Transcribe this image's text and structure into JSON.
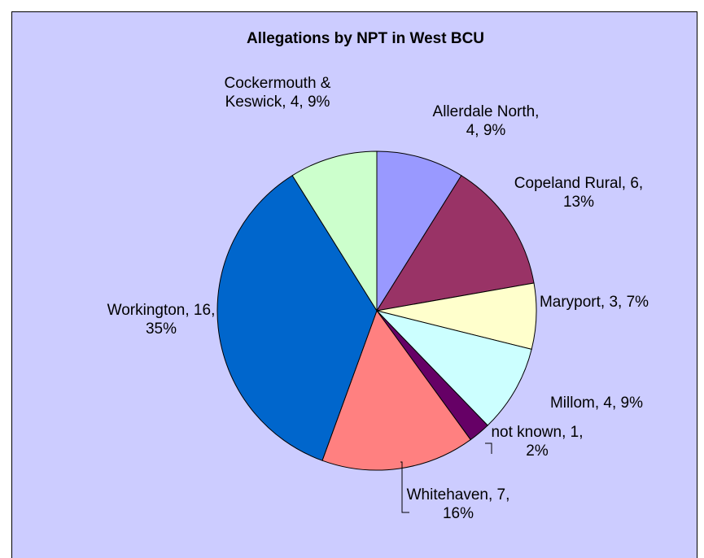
{
  "chart_data": {
    "type": "pie",
    "title": "Allegations by NPT in West BCU",
    "values": [
      4,
      6,
      3,
      4,
      1,
      7,
      16,
      4
    ],
    "value_labels": [
      "Allerdale North, 4, 9%",
      "Copeland Rural, 6, 13%",
      "Maryport, 3, 7%",
      "Millom, 4, 9%",
      "not known, 1, 2%",
      "Whitehaven, 7, 16%",
      "Workington, 16, 35%",
      "Cockermouth & Keswick, 4, 9%"
    ],
    "colors": [
      "#9999ff",
      "#993366",
      "#ffffcc",
      "#ccffff",
      "#660066",
      "#ff8080",
      "#0066cc",
      "#ccffcc"
    ]
  }
}
